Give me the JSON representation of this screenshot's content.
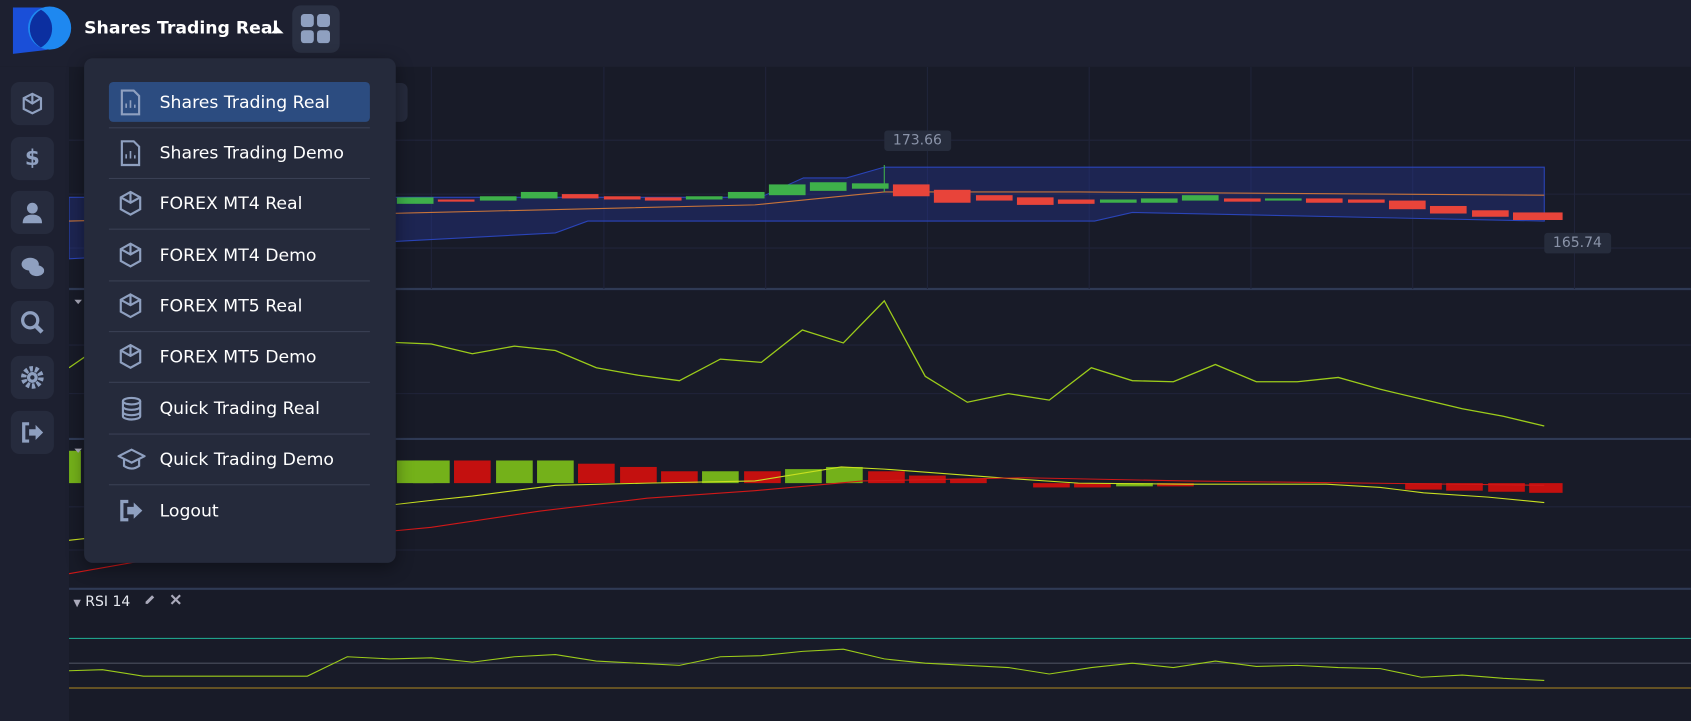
{
  "header": {
    "account": "Shares Trading Real"
  },
  "menu": {
    "items": [
      "Shares Trading Real",
      "Shares Trading Demo",
      "FOREX MT4 Real",
      "FOREX MT4 Demo",
      "FOREX MT5 Real",
      "FOREX MT5 Demo",
      "Quick Trading Real",
      "Quick Trading Demo",
      "Logout"
    ]
  },
  "chart": {
    "price_labels": {
      "high": 173.66,
      "low": 165.74
    },
    "rsi": {
      "name": "RSI",
      "period": 14
    }
  }
}
